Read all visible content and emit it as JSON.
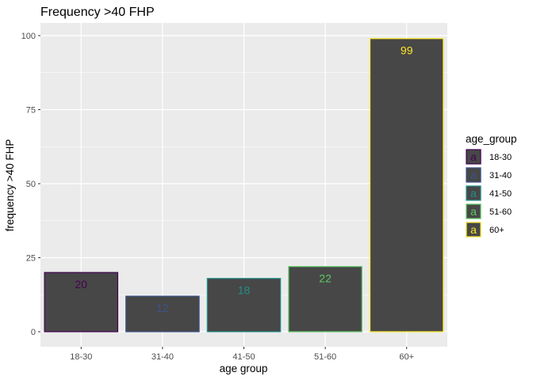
{
  "chart_data": {
    "type": "bar",
    "title": "Frequency >40 FHP",
    "xlabel": "age group",
    "ylabel": "frequency >40 FHP",
    "categories": [
      "18-30",
      "31-40",
      "41-50",
      "51-60",
      "60+"
    ],
    "values": [
      20,
      12,
      18,
      22,
      99
    ],
    "data_labels": [
      "20",
      "12",
      "18",
      "22",
      "99"
    ],
    "ylim": [
      0,
      104
    ],
    "yticks": [
      0,
      25,
      50,
      75,
      100
    ],
    "ytick_labels": [
      "0",
      "25",
      "50",
      "75",
      "100"
    ],
    "grid": true,
    "legend": {
      "title": "age_group",
      "placement": "right",
      "key_glyph": "a",
      "entries": [
        "18-30",
        "31-40",
        "41-50",
        "51-60",
        "60+"
      ]
    },
    "colors": {
      "bar_fill": "#474747",
      "panel_bg": "#ebebeb",
      "grid": "#ffffff",
      "outlines": [
        "#440154",
        "#3b528b",
        "#21908c",
        "#5dc863",
        "#fde725"
      ]
    }
  }
}
